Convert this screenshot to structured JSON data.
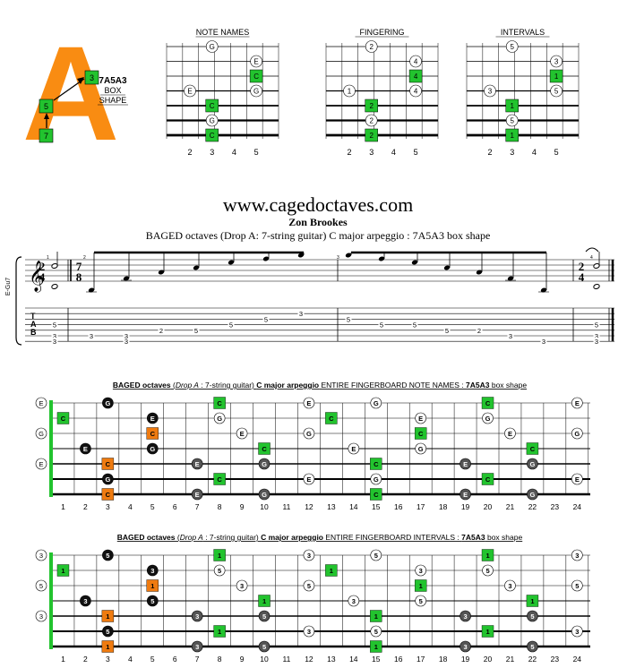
{
  "logo": {
    "letter": "A",
    "shape_name": "7A5A3",
    "box_label": "BOX",
    "shape_label": "SHAPE",
    "markers": [
      "3",
      "5",
      "7"
    ]
  },
  "small_diagrams": [
    {
      "title": "NOTE NAMES",
      "frets": [
        "2",
        "3",
        "4",
        "5"
      ],
      "dots": [
        {
          "s": 0,
          "f": 1,
          "t": "G",
          "k": "w"
        },
        {
          "s": 1,
          "f": 3,
          "t": "E",
          "k": "w"
        },
        {
          "s": 2,
          "f": 3,
          "t": "C",
          "k": "g"
        },
        {
          "s": 3,
          "f": 0,
          "t": "E",
          "k": "w"
        },
        {
          "s": 3,
          "f": 3,
          "t": "G",
          "k": "w"
        },
        {
          "s": 4,
          "f": 1,
          "t": "C",
          "k": "g"
        },
        {
          "s": 5,
          "f": 1,
          "t": "G",
          "k": "w"
        },
        {
          "s": 6,
          "f": 1,
          "t": "C",
          "k": "g"
        }
      ]
    },
    {
      "title": "FINGERING",
      "frets": [
        "2",
        "3",
        "4",
        "5"
      ],
      "dots": [
        {
          "s": 0,
          "f": 1,
          "t": "2",
          "k": "w"
        },
        {
          "s": 1,
          "f": 3,
          "t": "4",
          "k": "w"
        },
        {
          "s": 2,
          "f": 3,
          "t": "4",
          "k": "g"
        },
        {
          "s": 3,
          "f": 0,
          "t": "1",
          "k": "w"
        },
        {
          "s": 3,
          "f": 3,
          "t": "4",
          "k": "w"
        },
        {
          "s": 4,
          "f": 1,
          "t": "2",
          "k": "g"
        },
        {
          "s": 5,
          "f": 1,
          "t": "2",
          "k": "w"
        },
        {
          "s": 6,
          "f": 1,
          "t": "2",
          "k": "g"
        }
      ]
    },
    {
      "title": "INTERVALS",
      "frets": [
        "2",
        "3",
        "4",
        "5"
      ],
      "dots": [
        {
          "s": 0,
          "f": 1,
          "t": "5",
          "k": "w"
        },
        {
          "s": 1,
          "f": 3,
          "t": "3",
          "k": "w"
        },
        {
          "s": 2,
          "f": 3,
          "t": "1",
          "k": "g"
        },
        {
          "s": 3,
          "f": 0,
          "t": "3",
          "k": "w"
        },
        {
          "s": 3,
          "f": 3,
          "t": "5",
          "k": "w"
        },
        {
          "s": 4,
          "f": 1,
          "t": "1",
          "k": "g"
        },
        {
          "s": 5,
          "f": 1,
          "t": "5",
          "k": "w"
        },
        {
          "s": 6,
          "f": 1,
          "t": "1",
          "k": "g"
        }
      ]
    }
  ],
  "header": {
    "website": "www.cagedoctaves.com",
    "author": "Zon Brookes",
    "subtitle": "BAGED octaves (Drop A: 7-string guitar) C major arpeggio : 7A5A3 box shape"
  },
  "score": {
    "tuning_label": "E-Gu7",
    "time_sig_1": [
      "2",
      "4"
    ],
    "time_sig_2": [
      "7",
      "8"
    ],
    "measure_numbers": [
      "1",
      "2",
      "3",
      "4"
    ],
    "tab_letters": [
      "T",
      "A",
      "B"
    ],
    "tab_numbers": [
      {
        "s": 3,
        "m": 0,
        "t": "5"
      },
      {
        "s": 5,
        "m": 0,
        "t": "3"
      },
      {
        "s": 6,
        "m": 0,
        "t": "3"
      },
      {
        "s": 5,
        "m": 1,
        "t": "3"
      },
      {
        "s": 6,
        "m": 2,
        "t": "3"
      },
      {
        "s": 5,
        "m": 3,
        "t": "3"
      },
      {
        "s": 4,
        "m": 4,
        "t": "2"
      },
      {
        "s": 4,
        "m": 5,
        "t": "5"
      },
      {
        "s": 3,
        "m": 6,
        "t": "5"
      },
      {
        "s": 2,
        "m": 7,
        "t": "5"
      },
      {
        "s": 1,
        "m": 8,
        "t": "3"
      },
      {
        "s": 2,
        "m": 9,
        "t": "5"
      },
      {
        "s": 3,
        "m": 10,
        "t": "5"
      },
      {
        "s": 3,
        "m": 11,
        "t": "5"
      },
      {
        "s": 4,
        "m": 12,
        "t": "5"
      },
      {
        "s": 4,
        "m": 13,
        "t": "2"
      },
      {
        "s": 5,
        "m": 14,
        "t": "3"
      },
      {
        "s": 6,
        "m": 15,
        "t": "3"
      },
      {
        "s": 6,
        "m": 16,
        "t": "3"
      },
      {
        "s": 3,
        "m": 17,
        "t": "5"
      },
      {
        "s": 5,
        "m": 17,
        "t": "3"
      },
      {
        "s": 6,
        "m": 17,
        "t": "3"
      }
    ]
  },
  "fretboards": [
    {
      "title_bold": "BAGED octaves",
      "title_paren_open": " (",
      "title_italic": "Drop A",
      "title_rest": " : 7-string guitar) ",
      "title_bold2": "C major arpeggio",
      "title_plain": " ENTIRE FINGERBOARD NOTE NAMES : ",
      "title_bold3": "7A5A3",
      "title_end": " box shape",
      "open_notes": [
        "E",
        "",
        "G",
        "",
        "E",
        "",
        ""
      ],
      "dots": [
        {
          "s": 0,
          "f": 3,
          "t": "G",
          "k": "b"
        },
        {
          "s": 0,
          "f": 8,
          "t": "C",
          "k": "g"
        },
        {
          "s": 0,
          "f": 12,
          "t": "E",
          "k": "w"
        },
        {
          "s": 0,
          "f": 15,
          "t": "G",
          "k": "w"
        },
        {
          "s": 0,
          "f": 20,
          "t": "C",
          "k": "g"
        },
        {
          "s": 0,
          "f": 24,
          "t": "E",
          "k": "w"
        },
        {
          "s": 1,
          "f": 1,
          "t": "C",
          "k": "g"
        },
        {
          "s": 1,
          "f": 5,
          "t": "E",
          "k": "b"
        },
        {
          "s": 1,
          "f": 8,
          "t": "G",
          "k": "w"
        },
        {
          "s": 1,
          "f": 13,
          "t": "C",
          "k": "g"
        },
        {
          "s": 1,
          "f": 17,
          "t": "E",
          "k": "w"
        },
        {
          "s": 1,
          "f": 20,
          "t": "G",
          "k": "w"
        },
        {
          "s": 2,
          "f": 5,
          "t": "C",
          "k": "o"
        },
        {
          "s": 2,
          "f": 9,
          "t": "E",
          "k": "w"
        },
        {
          "s": 2,
          "f": 12,
          "t": "G",
          "k": "w"
        },
        {
          "s": 2,
          "f": 17,
          "t": "C",
          "k": "g"
        },
        {
          "s": 2,
          "f": 21,
          "t": "E",
          "k": "w"
        },
        {
          "s": 2,
          "f": 24,
          "t": "G",
          "k": "w"
        },
        {
          "s": 3,
          "f": 2,
          "t": "E",
          "k": "b"
        },
        {
          "s": 3,
          "f": 5,
          "t": "G",
          "k": "b"
        },
        {
          "s": 3,
          "f": 10,
          "t": "C",
          "k": "g"
        },
        {
          "s": 3,
          "f": 14,
          "t": "E",
          "k": "w"
        },
        {
          "s": 3,
          "f": 17,
          "t": "G",
          "k": "w"
        },
        {
          "s": 3,
          "f": 22,
          "t": "C",
          "k": "g"
        },
        {
          "s": 4,
          "f": 3,
          "t": "C",
          "k": "o"
        },
        {
          "s": 4,
          "f": 7,
          "t": "E",
          "k": "d"
        },
        {
          "s": 4,
          "f": 10,
          "t": "G",
          "k": "d"
        },
        {
          "s": 4,
          "f": 15,
          "t": "C",
          "k": "g"
        },
        {
          "s": 4,
          "f": 19,
          "t": "E",
          "k": "d"
        },
        {
          "s": 4,
          "f": 22,
          "t": "G",
          "k": "d"
        },
        {
          "s": 5,
          "f": 3,
          "t": "G",
          "k": "b"
        },
        {
          "s": 5,
          "f": 8,
          "t": "C",
          "k": "g"
        },
        {
          "s": 5,
          "f": 12,
          "t": "E",
          "k": "w"
        },
        {
          "s": 5,
          "f": 15,
          "t": "G",
          "k": "w"
        },
        {
          "s": 5,
          "f": 20,
          "t": "C",
          "k": "g"
        },
        {
          "s": 5,
          "f": 24,
          "t": "E",
          "k": "w"
        },
        {
          "s": 6,
          "f": 3,
          "t": "C",
          "k": "o"
        },
        {
          "s": 6,
          "f": 7,
          "t": "E",
          "k": "d"
        },
        {
          "s": 6,
          "f": 10,
          "t": "G",
          "k": "d"
        },
        {
          "s": 6,
          "f": 15,
          "t": "C",
          "k": "g"
        },
        {
          "s": 6,
          "f": 19,
          "t": "E",
          "k": "d"
        },
        {
          "s": 6,
          "f": 22,
          "t": "G",
          "k": "d"
        }
      ]
    },
    {
      "title_bold": "BAGED octaves",
      "title_paren_open": " (",
      "title_italic": "Drop A",
      "title_rest": " : 7-string guitar) ",
      "title_bold2": "C major arpeggio",
      "title_plain": " ENTIRE FINGERBOARD INTERVALS : ",
      "title_bold3": "7A5A3",
      "title_end": " box shape",
      "open_notes": [
        "3",
        "",
        "5",
        "",
        "3",
        "",
        ""
      ],
      "dots": [
        {
          "s": 0,
          "f": 3,
          "t": "5",
          "k": "b"
        },
        {
          "s": 0,
          "f": 8,
          "t": "1",
          "k": "g"
        },
        {
          "s": 0,
          "f": 12,
          "t": "3",
          "k": "w"
        },
        {
          "s": 0,
          "f": 15,
          "t": "5",
          "k": "w"
        },
        {
          "s": 0,
          "f": 20,
          "t": "1",
          "k": "g"
        },
        {
          "s": 0,
          "f": 24,
          "t": "3",
          "k": "w"
        },
        {
          "s": 1,
          "f": 1,
          "t": "1",
          "k": "g"
        },
        {
          "s": 1,
          "f": 5,
          "t": "3",
          "k": "b"
        },
        {
          "s": 1,
          "f": 8,
          "t": "5",
          "k": "w"
        },
        {
          "s": 1,
          "f": 13,
          "t": "1",
          "k": "g"
        },
        {
          "s": 1,
          "f": 17,
          "t": "3",
          "k": "w"
        },
        {
          "s": 1,
          "f": 20,
          "t": "5",
          "k": "w"
        },
        {
          "s": 2,
          "f": 5,
          "t": "1",
          "k": "o"
        },
        {
          "s": 2,
          "f": 9,
          "t": "3",
          "k": "w"
        },
        {
          "s": 2,
          "f": 12,
          "t": "5",
          "k": "w"
        },
        {
          "s": 2,
          "f": 17,
          "t": "1",
          "k": "g"
        },
        {
          "s": 2,
          "f": 21,
          "t": "3",
          "k": "w"
        },
        {
          "s": 2,
          "f": 24,
          "t": "5",
          "k": "w"
        },
        {
          "s": 3,
          "f": 2,
          "t": "3",
          "k": "b"
        },
        {
          "s": 3,
          "f": 5,
          "t": "5",
          "k": "b"
        },
        {
          "s": 3,
          "f": 10,
          "t": "1",
          "k": "g"
        },
        {
          "s": 3,
          "f": 14,
          "t": "3",
          "k": "w"
        },
        {
          "s": 3,
          "f": 17,
          "t": "5",
          "k": "w"
        },
        {
          "s": 3,
          "f": 22,
          "t": "1",
          "k": "g"
        },
        {
          "s": 4,
          "f": 3,
          "t": "1",
          "k": "o"
        },
        {
          "s": 4,
          "f": 7,
          "t": "3",
          "k": "d"
        },
        {
          "s": 4,
          "f": 10,
          "t": "5",
          "k": "d"
        },
        {
          "s": 4,
          "f": 15,
          "t": "1",
          "k": "g"
        },
        {
          "s": 4,
          "f": 19,
          "t": "3",
          "k": "d"
        },
        {
          "s": 4,
          "f": 22,
          "t": "5",
          "k": "d"
        },
        {
          "s": 5,
          "f": 3,
          "t": "5",
          "k": "b"
        },
        {
          "s": 5,
          "f": 8,
          "t": "1",
          "k": "g"
        },
        {
          "s": 5,
          "f": 12,
          "t": "3",
          "k": "w"
        },
        {
          "s": 5,
          "f": 15,
          "t": "5",
          "k": "w"
        },
        {
          "s": 5,
          "f": 20,
          "t": "1",
          "k": "g"
        },
        {
          "s": 5,
          "f": 24,
          "t": "3",
          "k": "w"
        },
        {
          "s": 6,
          "f": 3,
          "t": "1",
          "k": "o"
        },
        {
          "s": 6,
          "f": 7,
          "t": "3",
          "k": "d"
        },
        {
          "s": 6,
          "f": 10,
          "t": "5",
          "k": "d"
        },
        {
          "s": 6,
          "f": 15,
          "t": "1",
          "k": "g"
        },
        {
          "s": 6,
          "f": 19,
          "t": "3",
          "k": "d"
        },
        {
          "s": 6,
          "f": 22,
          "t": "5",
          "k": "d"
        }
      ]
    }
  ],
  "fret_numbers": [
    "1",
    "2",
    "3",
    "4",
    "5",
    "6",
    "7",
    "8",
    "9",
    "10",
    "11",
    "12",
    "13",
    "14",
    "15",
    "16",
    "17",
    "18",
    "19",
    "20",
    "21",
    "22",
    "23",
    "24"
  ],
  "colors": {
    "green": "#22c32e",
    "orange": "#ef7b10",
    "black": "#111111",
    "dark": "#555555",
    "logo": "#f98c12"
  }
}
